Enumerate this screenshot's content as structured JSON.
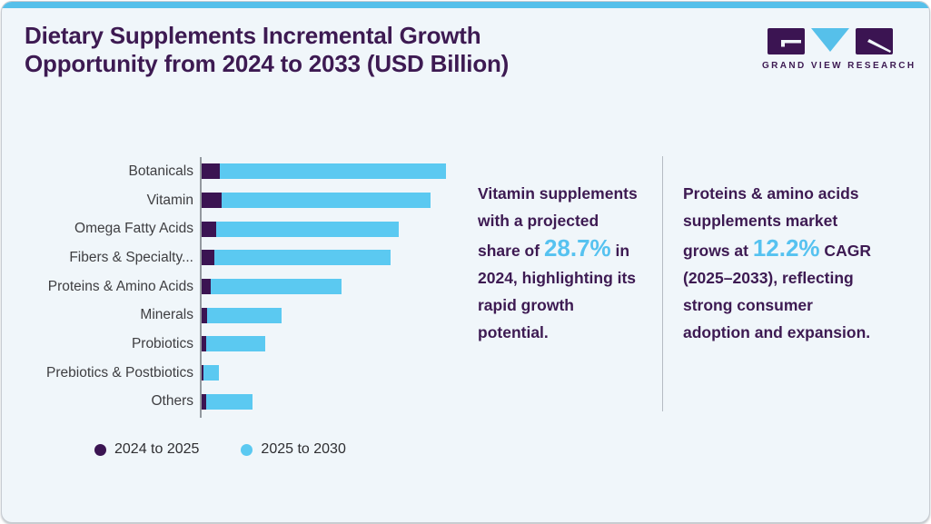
{
  "header": {
    "title_line1": "Dietary Supplements Incremental Growth",
    "title_line2": "Opportunity from 2024 to 2033 (USD Billion)"
  },
  "logo": {
    "text": "GRAND VIEW RESEARCH"
  },
  "colors": {
    "accent_purple": "#3b1452",
    "accent_blue": "#5bc9f1",
    "highlight_blue": "#56c2f0",
    "top_strip": "#56c0ea",
    "card_bg": "#f0f6fa",
    "title_purple": "#3d1a52"
  },
  "chart_data": {
    "type": "bar",
    "orientation": "horizontal",
    "title": "Dietary Supplements Incremental Growth Opportunity from 2024 to 2033 (USD Billion)",
    "categories": [
      "Botanicals",
      "Vitamin",
      "Omega Fatty Acids",
      "Fibers & Specialty...",
      "Proteins & Amino Acids",
      "Minerals",
      "Probiotics",
      "Prebiotics & Postbiotics",
      "Others"
    ],
    "series": [
      {
        "name": "2024 to 2025",
        "color": "#3b1452",
        "values": [
          7.8,
          8.5,
          6.3,
          5.6,
          3.9,
          2.6,
          2.2,
          1.1,
          2.2
        ]
      },
      {
        "name": "2025 to 2030",
        "color": "#5bc9f1",
        "values": [
          92.2,
          85.2,
          74.4,
          71.9,
          53.5,
          30.4,
          24.1,
          6.3,
          18.9
        ]
      }
    ],
    "stacked": true,
    "value_axis_note": "no numeric axis or gridlines shown; values estimated as relative bar lengths, longest total bar = 100",
    "xlabel": "",
    "ylabel": "",
    "grid": false,
    "legend_position": "bottom-left"
  },
  "callouts": [
    {
      "segments": [
        {
          "text": "Vitamin supplements with a projected share of "
        },
        {
          "text": "28.7%",
          "highlight": true
        },
        {
          "text": " in 2024, highlighting its rapid growth potential."
        }
      ]
    },
    {
      "segments": [
        {
          "text": "Proteins & amino acids supplements market grows at "
        },
        {
          "text": "12.2%",
          "highlight": true
        },
        {
          "text": " CAGR (2025–2033), reflecting strong consumer adoption and expansion."
        }
      ]
    }
  ]
}
